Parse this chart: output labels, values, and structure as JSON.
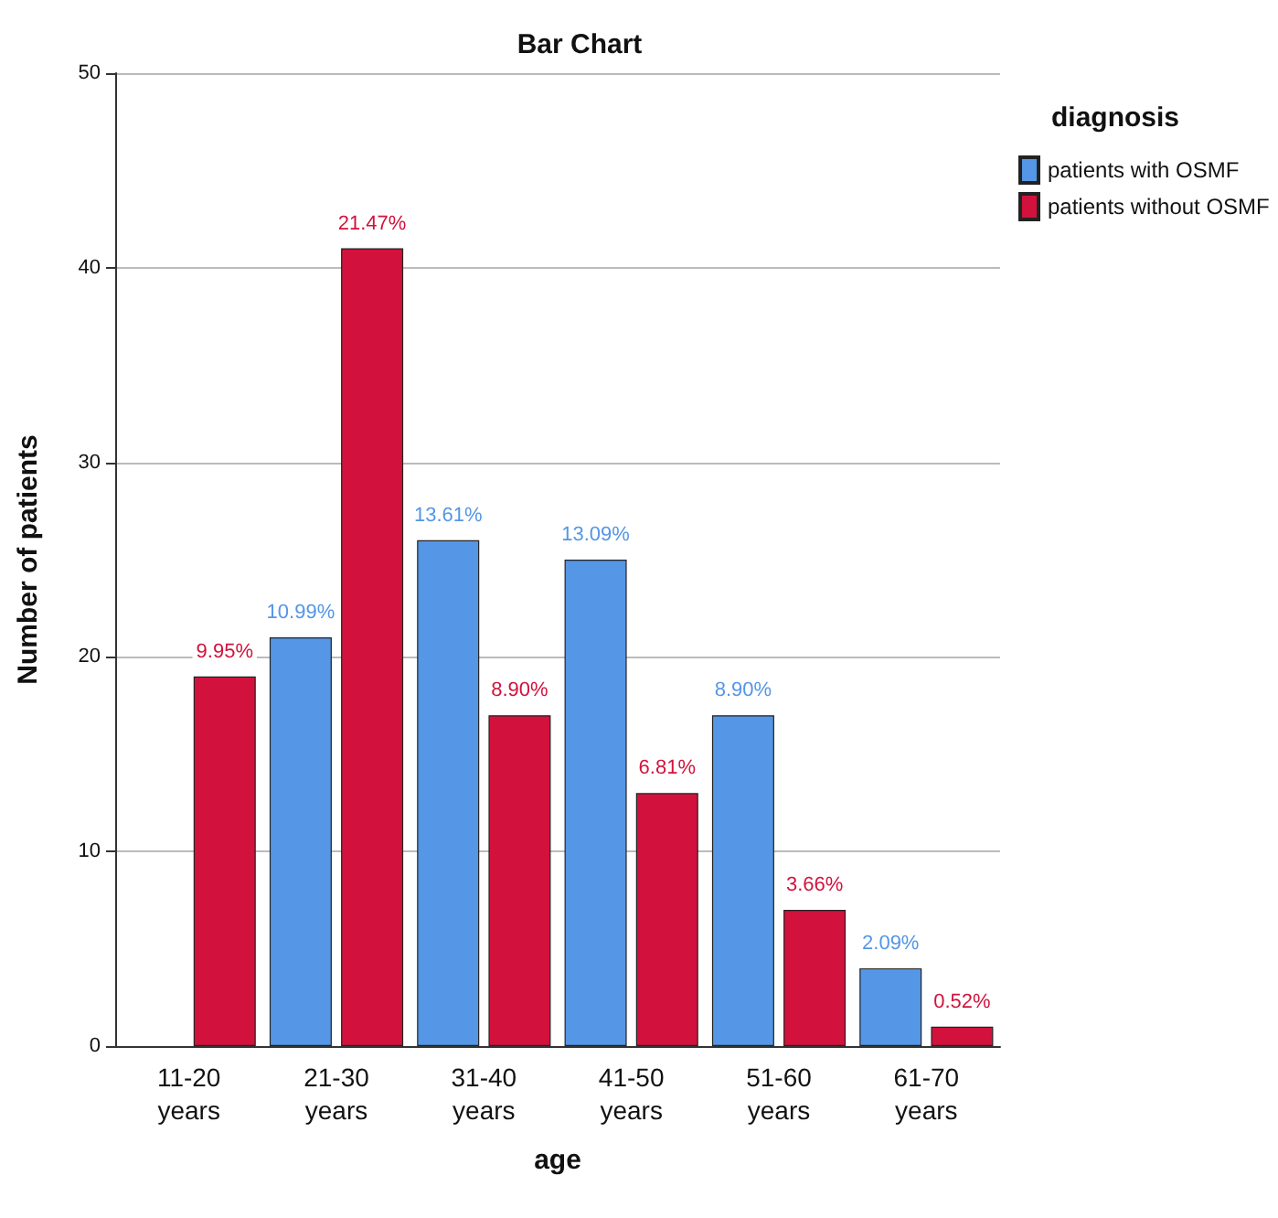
{
  "chart_data": {
    "type": "bar",
    "title": "Bar Chart",
    "xlabel": "age",
    "ylabel": "Number of patients",
    "legend_title": "diagnosis",
    "categories": [
      "11-20\nyears",
      "21-30\nyears",
      "31-40\nyears",
      "41-50\nyears",
      "51-60\nyears",
      "61-70\nyears"
    ],
    "series": [
      {
        "name": "patients with OSMF",
        "color": "#5596e6",
        "values": [
          null,
          21,
          26,
          25,
          17,
          4
        ]
      },
      {
        "name": "patients without OSMF",
        "color": "#d2123c",
        "values": [
          19,
          41,
          17,
          13,
          7,
          1
        ]
      }
    ],
    "annotations": [
      {
        "text": "9.95%",
        "x": "11-20\nyears",
        "y": 19
      },
      {
        "text": "10.99%",
        "x": "21-30\nyears",
        "y": 21
      },
      {
        "text": "21.47%",
        "x": "21-30\nyears",
        "y": 41
      },
      {
        "text": "13.61%",
        "x": "31-40\nyears",
        "y": 26
      },
      {
        "text": "8.90%",
        "x": "31-40\nyears",
        "y": 17
      },
      {
        "text": "13.09%",
        "x": "41-50\nyears",
        "y": 25
      },
      {
        "text": "6.81%",
        "x": "41-50\nyears",
        "y": 13
      },
      {
        "text": "8.90%",
        "x": "51-60\nyears",
        "y": 17
      },
      {
        "text": "3.66%",
        "x": "51-60\nyears",
        "y": 7
      },
      {
        "text": "2.09%",
        "x": "61-70\nyears",
        "y": 4
      },
      {
        "text": "0.52%",
        "x": "61-70\nyears",
        "y": 1
      }
    ],
    "ylim": [
      0,
      50
    ],
    "yticks": [
      0,
      10,
      20,
      30,
      40,
      50
    ],
    "grid": "y",
    "legend": "top right"
  }
}
